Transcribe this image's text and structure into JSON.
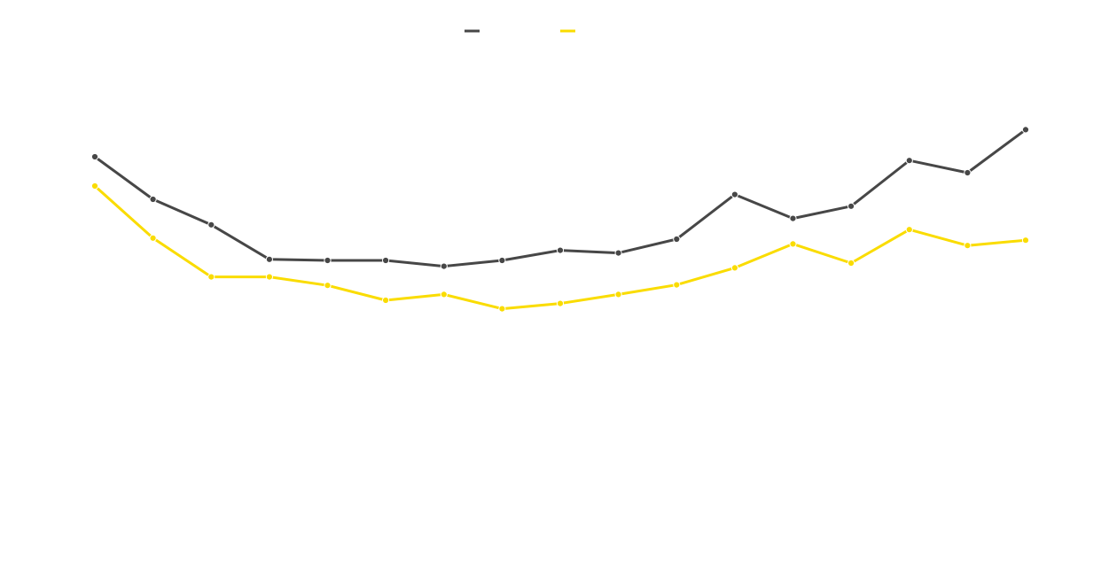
{
  "chart_data": {
    "type": "line",
    "title": "",
    "xlabel": "",
    "ylabel": "",
    "x": [
      1,
      2,
      3,
      4,
      5,
      6,
      7,
      8,
      9,
      10,
      11,
      12,
      13,
      14,
      15,
      16,
      17
    ],
    "ylim": [
      0,
      100
    ],
    "grid": false,
    "legend": "top-center",
    "series": [
      {
        "color": "#474747",
        "values": [
          75.5,
          67.5,
          62.7,
          56.2,
          56.0,
          56.0,
          54.9,
          56.0,
          57.9,
          57.4,
          60.0,
          68.4,
          63.9,
          66.2,
          74.8,
          72.5,
          80.6
        ]
      },
      {
        "color": "#fadc00",
        "values": [
          70.0,
          60.2,
          52.9,
          52.9,
          51.3,
          48.5,
          49.6,
          46.9,
          47.9,
          49.6,
          51.4,
          54.6,
          59.1,
          55.5,
          61.8,
          58.8,
          59.8
        ]
      }
    ]
  }
}
